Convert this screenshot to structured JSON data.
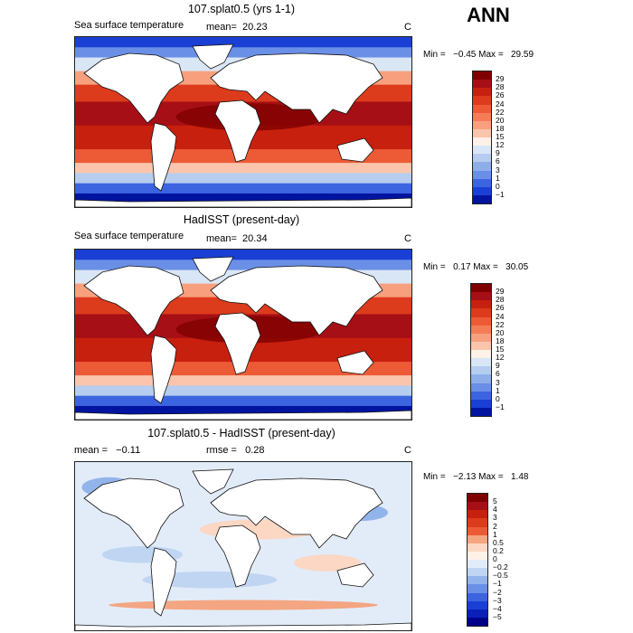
{
  "season": "ANN",
  "panels": [
    {
      "title": "107.splat0.5 (yrs 1-1)",
      "variable": "Sea surface temperature",
      "stat_text": "mean=  20.23",
      "units": "C",
      "min_max": "Min =   −0.45 Max =   29.59",
      "colorbar_labels": [
        "29",
        "28",
        "26",
        "24",
        "22",
        "20",
        "18",
        "15",
        "12",
        "9",
        "6",
        "3",
        "1",
        "0",
        "−1"
      ],
      "colorbar_colors": [
        "#7f0000",
        "#a50f15",
        "#c8200e",
        "#dc3b1c",
        "#ec5b36",
        "#f47d57",
        "#f8a07e",
        "#fbc5ad",
        "#fdf1e8",
        "#d9e6f6",
        "#b6cdef",
        "#8eaeea",
        "#6a8fe6",
        "#3c64e0",
        "#1a3fd4",
        "#0014a0"
      ]
    },
    {
      "title": "HadISST (present-day)",
      "variable": "Sea surface temperature",
      "stat_text": "mean=  20.34",
      "units": "C",
      "min_max": "Min =   0.17 Max =   30.05",
      "colorbar_labels": [
        "29",
        "28",
        "26",
        "24",
        "22",
        "20",
        "18",
        "15",
        "12",
        "9",
        "6",
        "3",
        "1",
        "0",
        "−1"
      ],
      "colorbar_colors": [
        "#7f0000",
        "#a50f15",
        "#c8200e",
        "#dc3b1c",
        "#ec5b36",
        "#f47d57",
        "#f8a07e",
        "#fbc5ad",
        "#fdf1e8",
        "#d9e6f6",
        "#b6cdef",
        "#8eaeea",
        "#6a8fe6",
        "#3c64e0",
        "#1a3fd4",
        "#0014a0"
      ]
    },
    {
      "title": "107.splat0.5 - HadISST (present-day)",
      "stat_text": "mean =   −0.11",
      "rmse_text": "rmse =   0.28",
      "units": "C",
      "min_max": "Min =   −2.13 Max =   1.48",
      "colorbar_labels": [
        "5",
        "4",
        "3",
        "2",
        "1",
        "0.5",
        "0.2",
        "0",
        "−0.2",
        "−0.5",
        "−1",
        "−2",
        "−3",
        "−4",
        "−5"
      ],
      "colorbar_colors": [
        "#7f0000",
        "#a50f15",
        "#c8200e",
        "#dc3b1c",
        "#ec5b36",
        "#f4a582",
        "#fbd7c4",
        "#fdf1e8",
        "#e2ecf9",
        "#c0d5f2",
        "#93b4ea",
        "#6a8fe6",
        "#3c64e0",
        "#1a3fd4",
        "#0a1fb8",
        "#00008b"
      ]
    }
  ]
}
